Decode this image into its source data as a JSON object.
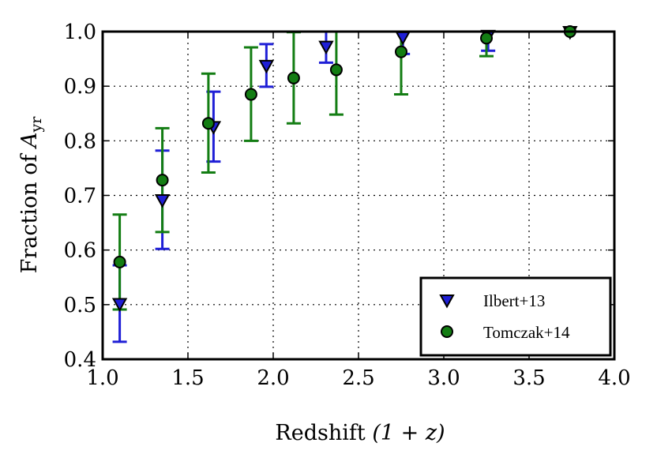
{
  "chart_data": {
    "type": "scatter",
    "title": "",
    "xlabel_prefix": "Redshift ",
    "xlabel_math": "(1 + z)",
    "ylabel_prefix": "Fraction of ",
    "ylabel_symbol": "A",
    "ylabel_subscript": "yr",
    "xlim": [
      1.0,
      4.0
    ],
    "ylim": [
      0.4,
      1.0
    ],
    "xticks": [
      1.0,
      1.5,
      2.0,
      2.5,
      3.0,
      3.5,
      4.0
    ],
    "xtick_labels": [
      "1.0",
      "1.5",
      "2.0",
      "2.5",
      "3.0",
      "3.5",
      "4.0"
    ],
    "yticks": [
      0.4,
      0.5,
      0.6,
      0.7,
      0.8,
      0.9,
      1.0
    ],
    "ytick_labels": [
      "0.4",
      "0.5",
      "0.6",
      "0.7",
      "0.8",
      "0.9",
      "1.0"
    ],
    "grid": true,
    "legend_position": "bottom-right",
    "series": [
      {
        "name": "Ilbert+13",
        "marker": "triangle-down",
        "color": "#1f1fd6",
        "edge": "#000000",
        "points": [
          {
            "x": 1.1,
            "y": 0.502,
            "lo": 0.432,
            "hi": 0.572
          },
          {
            "x": 1.35,
            "y": 0.692,
            "lo": 0.602,
            "hi": 0.782
          },
          {
            "x": 1.65,
            "y": 0.826,
            "lo": 0.762,
            "hi": 0.89
          },
          {
            "x": 1.96,
            "y": 0.938,
            "lo": 0.899,
            "hi": 0.977
          },
          {
            "x": 2.31,
            "y": 0.973,
            "lo": 0.943,
            "hi": 1.003
          },
          {
            "x": 2.76,
            "y": 0.99,
            "lo": 0.959,
            "hi": 1.021
          },
          {
            "x": 3.26,
            "y": 0.993,
            "lo": 0.965,
            "hi": 1.021
          },
          {
            "x": 3.74,
            "y": 1.0,
            "lo": 1.0,
            "hi": 1.0
          }
        ]
      },
      {
        "name": "Tomczak+14",
        "marker": "circle",
        "color": "#137d13",
        "edge": "#000000",
        "points": [
          {
            "x": 1.1,
            "y": 0.578,
            "lo": 0.491,
            "hi": 0.665
          },
          {
            "x": 1.35,
            "y": 0.728,
            "lo": 0.633,
            "hi": 0.823
          },
          {
            "x": 1.62,
            "y": 0.832,
            "lo": 0.742,
            "hi": 0.923
          },
          {
            "x": 1.87,
            "y": 0.885,
            "lo": 0.8,
            "hi": 0.971
          },
          {
            "x": 2.12,
            "y": 0.915,
            "lo": 0.832,
            "hi": 0.999
          },
          {
            "x": 2.37,
            "y": 0.93,
            "lo": 0.848,
            "hi": 1.012
          },
          {
            "x": 2.75,
            "y": 0.963,
            "lo": 0.885,
            "hi": 1.041
          },
          {
            "x": 3.25,
            "y": 0.988,
            "lo": 0.955,
            "hi": 1.021
          },
          {
            "x": 3.74,
            "y": 1.0,
            "lo": 1.0,
            "hi": 1.0
          }
        ]
      }
    ]
  }
}
